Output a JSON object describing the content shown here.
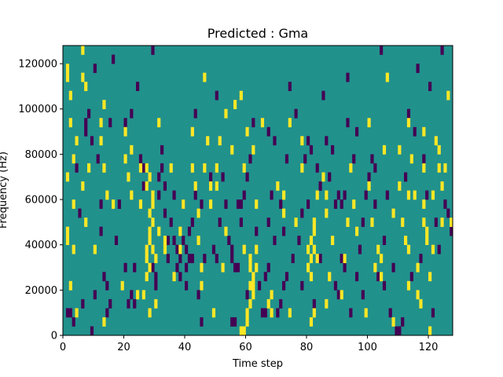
{
  "chart_data": {
    "type": "heatmap",
    "title": "Predicted : Gma",
    "xlabel": "Time step",
    "ylabel": "Frequency (Hz)",
    "xlim": [
      0,
      128
    ],
    "ylim": [
      0,
      128000
    ],
    "x_ticks": [
      0,
      20,
      40,
      60,
      80,
      100,
      120
    ],
    "x_tick_labels": [
      "0",
      "20",
      "40",
      "60",
      "80",
      "100",
      "120"
    ],
    "y_ticks": [
      0,
      20000,
      40000,
      60000,
      80000,
      100000,
      120000
    ],
    "y_tick_labels": [
      "0",
      "20000",
      "40000",
      "60000",
      "80000",
      "100000",
      "120000"
    ],
    "grid": false,
    "colormap": "viridis",
    "levels": {
      "low": 0,
      "mid": 1,
      "high": 2
    },
    "colors": {
      "low": "#440154",
      "mid": "#21918c",
      "high": "#fde725"
    },
    "background_level": 1,
    "cell_size": {
      "time_steps": 1,
      "hz": 4000
    },
    "high_cells": [
      [
        1,
        40000
      ],
      [
        1,
        44000
      ],
      [
        1,
        68000
      ],
      [
        1,
        112000
      ],
      [
        1,
        116000
      ],
      [
        2,
        92000
      ],
      [
        2,
        20000
      ],
      [
        2,
        104000
      ],
      [
        3,
        36000
      ],
      [
        3,
        76000
      ],
      [
        3,
        56000
      ],
      [
        4,
        84000
      ],
      [
        4,
        8000
      ],
      [
        6,
        64000
      ],
      [
        6,
        112000
      ],
      [
        6,
        124000
      ],
      [
        7,
        108000
      ],
      [
        7,
        48000
      ],
      [
        8,
        72000
      ],
      [
        10,
        36000
      ],
      [
        12,
        92000
      ],
      [
        12,
        84000
      ],
      [
        13,
        100000
      ],
      [
        13,
        72000
      ],
      [
        13,
        4000
      ],
      [
        14,
        60000
      ],
      [
        16,
        56000
      ],
      [
        19,
        20000
      ],
      [
        20,
        88000
      ],
      [
        20,
        76000
      ],
      [
        21,
        68000
      ],
      [
        22,
        80000
      ],
      [
        22,
        60000
      ],
      [
        24,
        16000
      ],
      [
        25,
        72000
      ],
      [
        25,
        56000
      ],
      [
        28,
        8000
      ],
      [
        29,
        48000
      ],
      [
        30,
        32000
      ],
      [
        30,
        12000
      ],
      [
        31,
        92000
      ],
      [
        31,
        44000
      ],
      [
        33,
        40000
      ],
      [
        33,
        36000
      ],
      [
        35,
        72000
      ],
      [
        36,
        24000
      ],
      [
        38,
        44000
      ],
      [
        38,
        36000
      ],
      [
        39,
        56000
      ],
      [
        42,
        88000
      ],
      [
        42,
        72000
      ],
      [
        43,
        64000
      ],
      [
        44,
        52000
      ],
      [
        44,
        40000
      ],
      [
        45,
        28000
      ],
      [
        45,
        20000
      ],
      [
        46,
        112000
      ],
      [
        46,
        72000
      ],
      [
        47,
        84000
      ],
      [
        48,
        64000
      ],
      [
        48,
        56000
      ],
      [
        49,
        8000
      ],
      [
        50,
        72000
      ],
      [
        50,
        64000
      ],
      [
        51,
        84000
      ],
      [
        52,
        28000
      ],
      [
        53,
        96000
      ],
      [
        53,
        44000
      ],
      [
        55,
        80000
      ],
      [
        56,
        100000
      ],
      [
        58,
        104000
      ],
      [
        59,
        72000
      ],
      [
        59,
        36000
      ],
      [
        60,
        88000
      ],
      [
        62,
        80000
      ],
      [
        63,
        56000
      ],
      [
        63,
        28000
      ],
      [
        65,
        92000
      ],
      [
        67,
        12000
      ],
      [
        68,
        16000
      ],
      [
        68,
        8000
      ],
      [
        70,
        64000
      ],
      [
        72,
        60000
      ],
      [
        72,
        52000
      ],
      [
        74,
        92000
      ],
      [
        74,
        8000
      ],
      [
        76,
        48000
      ],
      [
        78,
        84000
      ],
      [
        78,
        72000
      ],
      [
        81,
        24000
      ],
      [
        83,
        60000
      ],
      [
        83,
        32000
      ],
      [
        85,
        68000
      ],
      [
        86,
        60000
      ],
      [
        86,
        52000
      ],
      [
        86,
        12000
      ],
      [
        87,
        24000
      ],
      [
        88,
        40000
      ],
      [
        91,
        16000
      ],
      [
        92,
        32000
      ],
      [
        93,
        48000
      ],
      [
        94,
        72000
      ],
      [
        95,
        56000
      ],
      [
        96,
        44000
      ],
      [
        99,
        8000
      ],
      [
        100,
        92000
      ],
      [
        100,
        64000
      ],
      [
        101,
        48000
      ],
      [
        102,
        28000
      ],
      [
        103,
        36000
      ],
      [
        104,
        32000
      ],
      [
        104,
        24000
      ],
      [
        105,
        80000
      ],
      [
        106,
        112000
      ],
      [
        108,
        52000
      ],
      [
        108,
        4000
      ],
      [
        110,
        80000
      ],
      [
        110,
        64000
      ],
      [
        111,
        48000
      ],
      [
        112,
        40000
      ],
      [
        113,
        92000
      ],
      [
        113,
        60000
      ],
      [
        113,
        36000
      ],
      [
        113,
        20000
      ],
      [
        114,
        76000
      ],
      [
        115,
        60000
      ],
      [
        116,
        28000
      ],
      [
        116,
        16000
      ],
      [
        117,
        12000
      ],
      [
        118,
        88000
      ],
      [
        118,
        72000
      ],
      [
        118,
        56000
      ],
      [
        118,
        48000
      ],
      [
        119,
        44000
      ],
      [
        119,
        40000
      ],
      [
        120,
        24000
      ],
      [
        120,
        0
      ],
      [
        121,
        60000
      ],
      [
        121,
        36000
      ],
      [
        122,
        84000
      ],
      [
        123,
        80000
      ],
      [
        123,
        72000
      ],
      [
        124,
        64000
      ],
      [
        124,
        48000
      ],
      [
        125,
        72000
      ],
      [
        126,
        104000
      ],
      [
        127,
        48000
      ],
      [
        27,
        72000
      ],
      [
        27,
        64000
      ],
      [
        28,
        68000
      ],
      [
        29,
        60000
      ],
      [
        28,
        52000
      ],
      [
        29,
        56000
      ],
      [
        28,
        40000
      ],
      [
        28,
        44000
      ],
      [
        29,
        36000
      ],
      [
        27,
        36000
      ],
      [
        27,
        32000
      ],
      [
        28,
        28000
      ],
      [
        27,
        24000
      ],
      [
        26,
        16000
      ],
      [
        58,
        0
      ],
      [
        59,
        0
      ],
      [
        60,
        4000
      ],
      [
        60,
        8000
      ],
      [
        61,
        12000
      ],
      [
        62,
        16000
      ],
      [
        61,
        20000
      ],
      [
        62,
        24000
      ],
      [
        61,
        28000
      ],
      [
        61,
        32000
      ],
      [
        63,
        36000
      ],
      [
        62,
        20000
      ],
      [
        81,
        4000
      ],
      [
        82,
        8000
      ],
      [
        80,
        36000
      ],
      [
        81,
        40000
      ],
      [
        82,
        44000
      ],
      [
        82,
        48000
      ],
      [
        80,
        28000
      ],
      [
        81,
        32000
      ],
      [
        82,
        36000
      ]
    ],
    "low_cells": [
      [
        1,
        8000
      ],
      [
        2,
        8000
      ],
      [
        3,
        4000
      ],
      [
        4,
        72000
      ],
      [
        5,
        52000
      ],
      [
        6,
        12000
      ],
      [
        7,
        92000
      ],
      [
        7,
        88000
      ],
      [
        8,
        96000
      ],
      [
        9,
        0
      ],
      [
        9,
        84000
      ],
      [
        10,
        16000
      ],
      [
        10,
        116000
      ],
      [
        11,
        76000
      ],
      [
        12,
        56000
      ],
      [
        12,
        44000
      ],
      [
        13,
        24000
      ],
      [
        14,
        8000
      ],
      [
        14,
        20000
      ],
      [
        15,
        12000
      ],
      [
        15,
        92000
      ],
      [
        16,
        120000
      ],
      [
        17,
        40000
      ],
      [
        18,
        56000
      ],
      [
        20,
        28000
      ],
      [
        20,
        92000
      ],
      [
        21,
        12000
      ],
      [
        22,
        16000
      ],
      [
        22,
        96000
      ],
      [
        23,
        12000
      ],
      [
        23,
        28000
      ],
      [
        24,
        108000
      ],
      [
        25,
        76000
      ],
      [
        26,
        64000
      ],
      [
        26,
        72000
      ],
      [
        29,
        28000
      ],
      [
        29,
        124000
      ],
      [
        30,
        24000
      ],
      [
        30,
        20000
      ],
      [
        31,
        68000
      ],
      [
        31,
        60000
      ],
      [
        32,
        80000
      ],
      [
        32,
        72000
      ],
      [
        33,
        64000
      ],
      [
        33,
        52000
      ],
      [
        34,
        40000
      ],
      [
        34,
        32000
      ],
      [
        35,
        48000
      ],
      [
        36,
        40000
      ],
      [
        36,
        60000
      ],
      [
        37,
        36000
      ],
      [
        37,
        28000
      ],
      [
        38,
        32000
      ],
      [
        38,
        24000
      ],
      [
        39,
        56000
      ],
      [
        39,
        40000
      ],
      [
        40,
        36000
      ],
      [
        40,
        28000
      ],
      [
        40,
        20000
      ],
      [
        41,
        44000
      ],
      [
        41,
        32000
      ],
      [
        42,
        48000
      ],
      [
        42,
        32000
      ],
      [
        43,
        96000
      ],
      [
        43,
        60000
      ],
      [
        44,
        16000
      ],
      [
        45,
        4000
      ],
      [
        45,
        56000
      ],
      [
        46,
        32000
      ],
      [
        48,
        68000
      ],
      [
        49,
        36000
      ],
      [
        50,
        32000
      ],
      [
        50,
        104000
      ],
      [
        51,
        48000
      ],
      [
        52,
        68000
      ],
      [
        53,
        56000
      ],
      [
        54,
        40000
      ],
      [
        55,
        36000
      ],
      [
        55,
        32000
      ],
      [
        55,
        4000
      ],
      [
        56,
        4000
      ],
      [
        56,
        28000
      ],
      [
        57,
        28000
      ],
      [
        57,
        56000
      ],
      [
        58,
        48000
      ],
      [
        58,
        56000
      ],
      [
        59,
        60000
      ],
      [
        60,
        16000
      ],
      [
        60,
        68000
      ],
      [
        61,
        76000
      ],
      [
        62,
        92000
      ],
      [
        63,
        44000
      ],
      [
        64,
        20000
      ],
      [
        65,
        8000
      ],
      [
        66,
        8000
      ],
      [
        66,
        24000
      ],
      [
        67,
        28000
      ],
      [
        67,
        48000
      ],
      [
        67,
        88000
      ],
      [
        68,
        60000
      ],
      [
        69,
        84000
      ],
      [
        69,
        40000
      ],
      [
        70,
        8000
      ],
      [
        71,
        12000
      ],
      [
        71,
        56000
      ],
      [
        72,
        20000
      ],
      [
        72,
        44000
      ],
      [
        73,
        76000
      ],
      [
        73,
        24000
      ],
      [
        74,
        108000
      ],
      [
        75,
        32000
      ],
      [
        76,
        96000
      ],
      [
        77,
        40000
      ],
      [
        78,
        52000
      ],
      [
        78,
        20000
      ],
      [
        79,
        76000
      ],
      [
        80,
        56000
      ],
      [
        80,
        84000
      ],
      [
        81,
        80000
      ],
      [
        82,
        12000
      ],
      [
        83,
        72000
      ],
      [
        84,
        64000
      ],
      [
        84,
        32000
      ],
      [
        85,
        104000
      ],
      [
        86,
        84000
      ],
      [
        87,
        68000
      ],
      [
        88,
        80000
      ],
      [
        89,
        56000
      ],
      [
        89,
        20000
      ],
      [
        90,
        60000
      ],
      [
        90,
        16000
      ],
      [
        91,
        56000
      ],
      [
        91,
        32000
      ],
      [
        92,
        60000
      ],
      [
        92,
        28000
      ],
      [
        93,
        112000
      ],
      [
        93,
        92000
      ],
      [
        94,
        8000
      ],
      [
        95,
        76000
      ],
      [
        96,
        88000
      ],
      [
        96,
        24000
      ],
      [
        97,
        36000
      ],
      [
        98,
        48000
      ],
      [
        98,
        16000
      ],
      [
        99,
        60000
      ],
      [
        100,
        68000
      ],
      [
        101,
        76000
      ],
      [
        102,
        72000
      ],
      [
        102,
        56000
      ],
      [
        103,
        24000
      ],
      [
        104,
        124000
      ],
      [
        105,
        40000
      ],
      [
        105,
        20000
      ],
      [
        106,
        60000
      ],
      [
        107,
        8000
      ],
      [
        108,
        28000
      ],
      [
        109,
        0
      ],
      [
        110,
        0
      ],
      [
        111,
        4000
      ],
      [
        112,
        68000
      ],
      [
        113,
        96000
      ],
      [
        114,
        24000
      ],
      [
        115,
        88000
      ],
      [
        116,
        116000
      ],
      [
        117,
        32000
      ],
      [
        118,
        76000
      ],
      [
        119,
        60000
      ],
      [
        120,
        108000
      ],
      [
        121,
        8000
      ],
      [
        122,
        48000
      ],
      [
        123,
        36000
      ],
      [
        124,
        124000
      ],
      [
        125,
        56000
      ],
      [
        126,
        52000
      ],
      [
        127,
        44000
      ]
    ]
  }
}
